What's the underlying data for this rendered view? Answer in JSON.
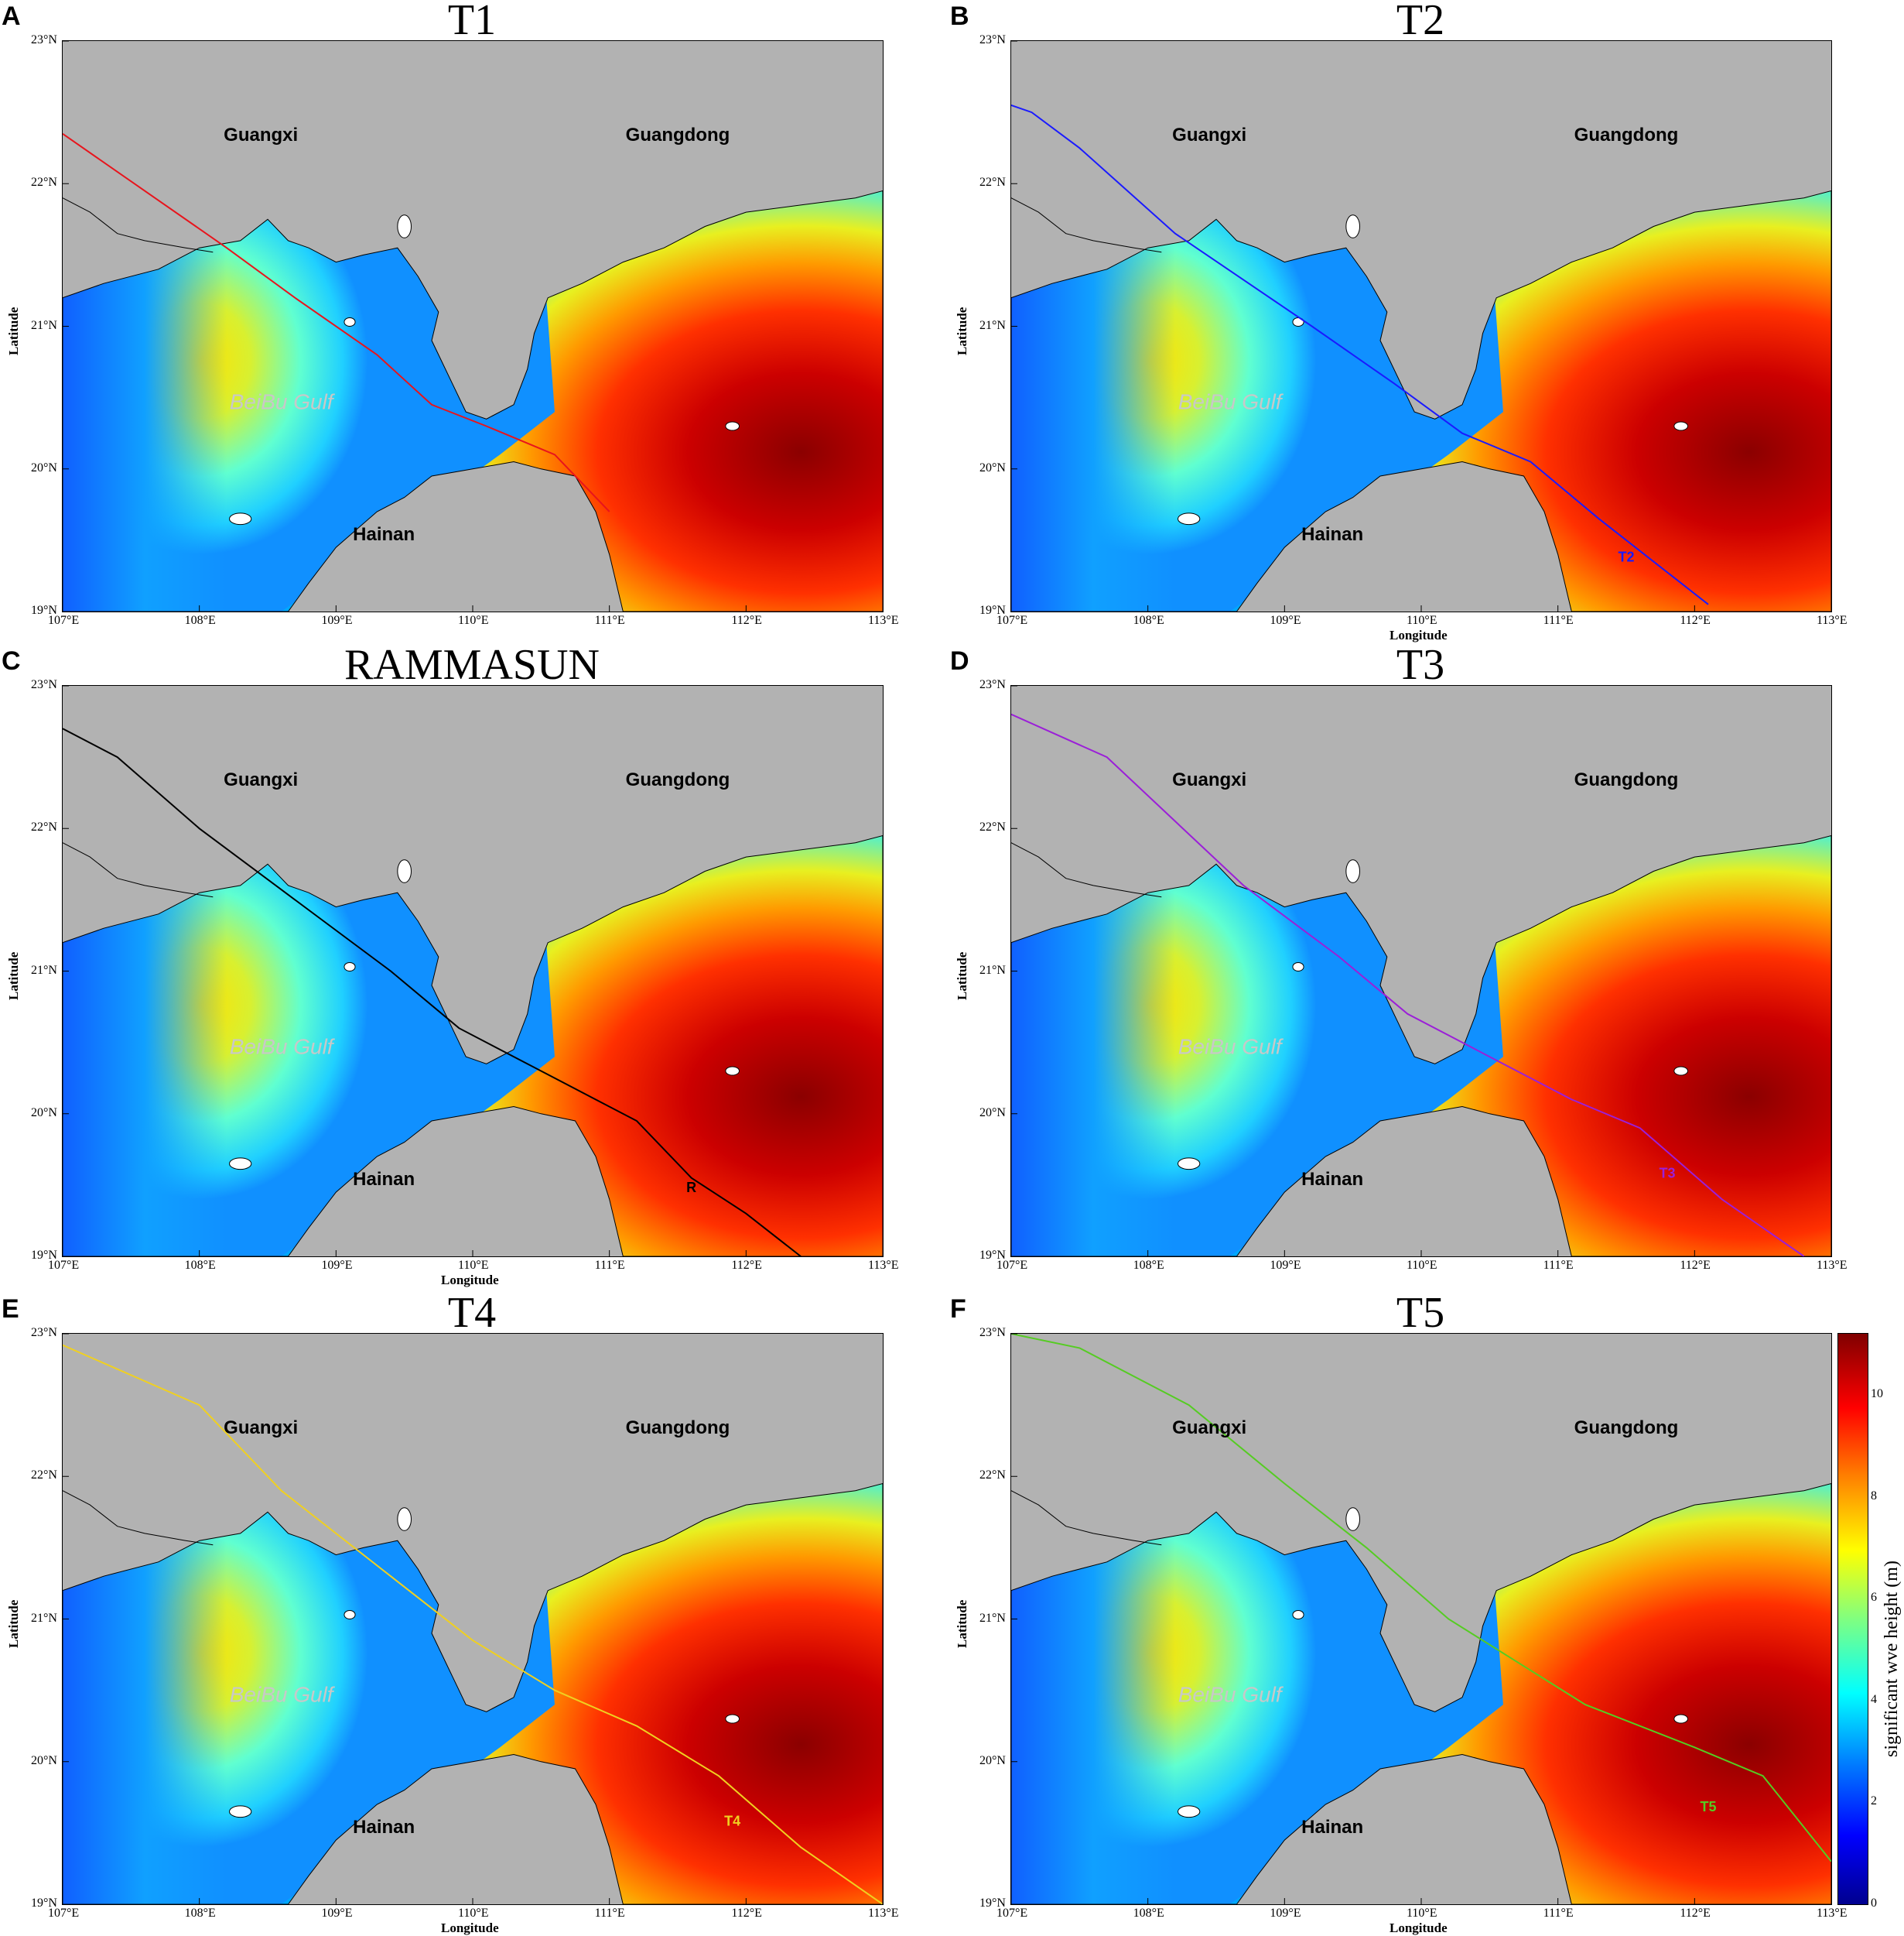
{
  "colors": {
    "land": "#b2b2b2",
    "coast_line": "#000000"
  },
  "axes": {
    "lon_ticks": [
      "107°E",
      "108°E",
      "109°E",
      "110°E",
      "111°E",
      "112°E",
      "113°E"
    ],
    "lat_ticks": [
      "23°N",
      "22°N",
      "21°N",
      "20°N",
      "19°N"
    ],
    "xlabel": "Longitude",
    "ylabel": "Latitude",
    "lon_range": [
      107,
      113
    ],
    "lat_range": [
      19,
      23
    ]
  },
  "labels": {
    "guangxi": "Guangxi",
    "guangdong": "Guangdong",
    "hainan": "Hainan",
    "beibu": "BeiBu Gulf"
  },
  "colorbar": {
    "title": "significant wve height  (m)",
    "ticks": [
      "0",
      "2",
      "4",
      "6",
      "8",
      "10"
    ],
    "range": [
      0,
      11.2
    ]
  },
  "panels": [
    {
      "letter": "A",
      "title": "T1",
      "track_label": "",
      "track_color": "#e8141c",
      "show_xaxis_title": false,
      "track": [
        [
          107,
          22.35
        ],
        [
          108.2,
          21.55
        ],
        [
          108.7,
          21.2
        ],
        [
          109.3,
          20.8
        ],
        [
          109.7,
          20.45
        ],
        [
          110.1,
          20.3
        ],
        [
          110.6,
          20.1
        ],
        [
          111.0,
          19.7
        ]
      ]
    },
    {
      "letter": "B",
      "title": "T2",
      "track_label": "T2",
      "track_color": "#1a1aff",
      "show_xaxis_title": true,
      "label_pos": [
        111.5,
        19.35
      ],
      "track": [
        [
          107,
          22.55
        ],
        [
          107.15,
          22.5
        ],
        [
          107.5,
          22.25
        ],
        [
          108.2,
          21.65
        ],
        [
          109.2,
          21.0
        ],
        [
          109.8,
          20.6
        ],
        [
          110.3,
          20.25
        ],
        [
          110.8,
          20.05
        ],
        [
          111.3,
          19.65
        ],
        [
          112.1,
          19.05
        ]
      ]
    },
    {
      "letter": "C",
      "title": "RAMMASUN",
      "track_label": "R",
      "track_color": "#000000",
      "show_xaxis_title": true,
      "label_pos": [
        111.6,
        19.45
      ],
      "track": [
        [
          107,
          22.7
        ],
        [
          107.4,
          22.5
        ],
        [
          108.0,
          22.0
        ],
        [
          108.7,
          21.5
        ],
        [
          109.4,
          21.0
        ],
        [
          109.9,
          20.6
        ],
        [
          110.5,
          20.3
        ],
        [
          111.2,
          19.95
        ],
        [
          111.6,
          19.55
        ],
        [
          112.0,
          19.3
        ],
        [
          112.4,
          19.0
        ]
      ]
    },
    {
      "letter": "D",
      "title": "T3",
      "track_label": "T3",
      "track_color": "#9b1fd8",
      "show_xaxis_title": false,
      "label_pos": [
        111.8,
        19.55
      ],
      "track": [
        [
          107,
          22.8
        ],
        [
          107.7,
          22.5
        ],
        [
          108.2,
          22.05
        ],
        [
          108.7,
          21.6
        ],
        [
          109.4,
          21.1
        ],
        [
          109.9,
          20.7
        ],
        [
          110.5,
          20.4
        ],
        [
          111.1,
          20.1
        ],
        [
          111.6,
          19.9
        ],
        [
          112.2,
          19.4
        ],
        [
          112.8,
          19.0
        ]
      ]
    },
    {
      "letter": "E",
      "title": "T4",
      "track_label": "T4",
      "track_color": "#f0d020",
      "show_xaxis_title": true,
      "label_pos": [
        111.9,
        19.55
      ],
      "track": [
        [
          107,
          22.92
        ],
        [
          108.0,
          22.5
        ],
        [
          108.6,
          21.9
        ],
        [
          109.4,
          21.3
        ],
        [
          110.0,
          20.85
        ],
        [
          110.6,
          20.5
        ],
        [
          111.2,
          20.25
        ],
        [
          111.8,
          19.9
        ],
        [
          112.4,
          19.4
        ],
        [
          113.0,
          19.0
        ]
      ]
    },
    {
      "letter": "F",
      "title": "T5",
      "track_label": "T5",
      "track_color": "#55cc22",
      "show_xaxis_title": true,
      "label_pos": [
        112.1,
        19.65
      ],
      "track": [
        [
          107,
          23.0
        ],
        [
          107.5,
          22.9
        ],
        [
          108.3,
          22.5
        ],
        [
          109.0,
          21.95
        ],
        [
          109.6,
          21.5
        ],
        [
          110.2,
          21.0
        ],
        [
          110.7,
          20.7
        ],
        [
          111.2,
          20.4
        ],
        [
          112.0,
          20.1
        ],
        [
          112.5,
          19.9
        ],
        [
          113.0,
          19.3
        ]
      ]
    }
  ]
}
